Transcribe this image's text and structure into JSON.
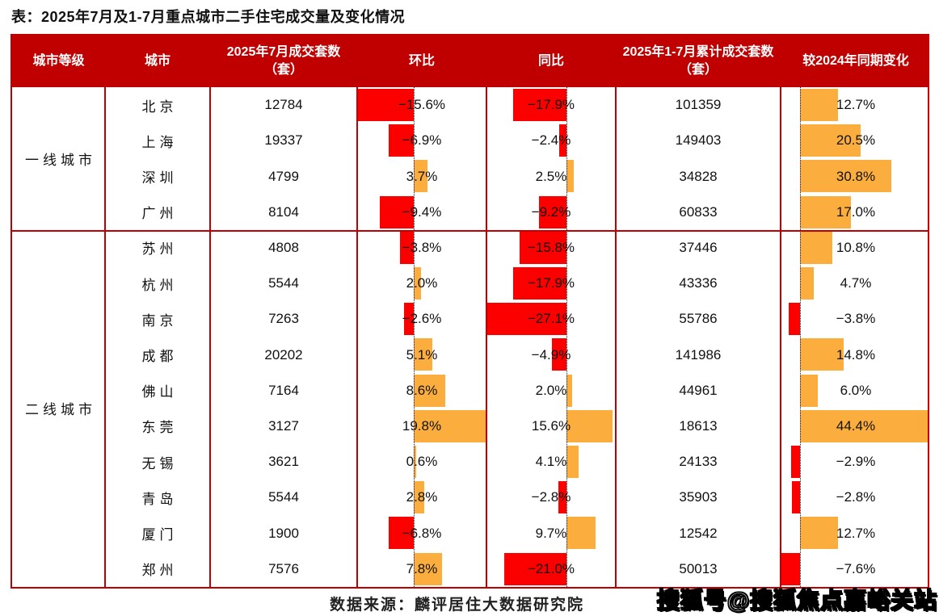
{
  "title": "表：2025年7月及1-7月重点城市二手住宅成交量及变化情况",
  "footer": {
    "source": "数据来源：麟评居住大数据研究院"
  },
  "watermark": "搜狐号@搜狐焦点嘉峪关站",
  "colors": {
    "header_bg": "#C00000",
    "border": "#C00000",
    "negative_bar": "#FC0000",
    "positive_bar": "#FBAE3D",
    "baseline": "#1B1B1B",
    "header_text": "#FFFFFF",
    "cell_text": "#111111"
  },
  "chart_data": {
    "type": "table",
    "title": "表：2025年7月及1-7月重点城市二手住宅成交量及变化情况",
    "columns": [
      "城市等级",
      "城市",
      "2025年7月成交套数（套）",
      "环比",
      "同比",
      "2025年1-7月累计成交套数（套）",
      "较2024年同期变化"
    ],
    "bar_semantics": "环比 / 同比 / 较2024年同期变化 列内嵌条形图：负值为红色向左，正值为橙色向右，虚线为零基线",
    "groups": [
      {
        "tier": "一线城市",
        "rows": [
          {
            "city": "北京",
            "jul_units": 12784,
            "mom_pct": -15.6,
            "yoy_pct": -17.9,
            "cum_units": 101359,
            "vs_2024_pct": 12.7
          },
          {
            "city": "上海",
            "jul_units": 19337,
            "mom_pct": -6.9,
            "yoy_pct": -2.4,
            "cum_units": 149403,
            "vs_2024_pct": 20.5
          },
          {
            "city": "深圳",
            "jul_units": 4799,
            "mom_pct": 3.7,
            "yoy_pct": 2.5,
            "cum_units": 34828,
            "vs_2024_pct": 30.8
          },
          {
            "city": "广州",
            "jul_units": 8104,
            "mom_pct": -9.4,
            "yoy_pct": -9.2,
            "cum_units": 60833,
            "vs_2024_pct": 17.0
          }
        ]
      },
      {
        "tier": "二线城市",
        "rows": [
          {
            "city": "苏州",
            "jul_units": 4808,
            "mom_pct": -3.8,
            "yoy_pct": -15.8,
            "cum_units": 37446,
            "vs_2024_pct": 10.8
          },
          {
            "city": "杭州",
            "jul_units": 5544,
            "mom_pct": 2.0,
            "yoy_pct": -17.9,
            "cum_units": 43336,
            "vs_2024_pct": 4.7
          },
          {
            "city": "南京",
            "jul_units": 7263,
            "mom_pct": -2.6,
            "yoy_pct": -27.1,
            "cum_units": 55786,
            "vs_2024_pct": -3.8
          },
          {
            "city": "成都",
            "jul_units": 20202,
            "mom_pct": 5.1,
            "yoy_pct": -4.9,
            "cum_units": 141986,
            "vs_2024_pct": 14.8
          },
          {
            "city": "佛山",
            "jul_units": 7164,
            "mom_pct": 8.6,
            "yoy_pct": 2.0,
            "cum_units": 44961,
            "vs_2024_pct": 6.0
          },
          {
            "city": "东莞",
            "jul_units": 3127,
            "mom_pct": 19.8,
            "yoy_pct": 15.6,
            "cum_units": 18613,
            "vs_2024_pct": 44.4
          },
          {
            "city": "无锡",
            "jul_units": 3621,
            "mom_pct": 0.6,
            "yoy_pct": 4.1,
            "cum_units": 24133,
            "vs_2024_pct": -2.9
          },
          {
            "city": "青岛",
            "jul_units": 5544,
            "mom_pct": 2.8,
            "yoy_pct": -2.8,
            "cum_units": 35903,
            "vs_2024_pct": -2.8
          },
          {
            "city": "厦门",
            "jul_units": 1900,
            "mom_pct": -6.8,
            "yoy_pct": 9.7,
            "cum_units": 12542,
            "vs_2024_pct": 12.7
          },
          {
            "city": "郑州",
            "jul_units": 7576,
            "mom_pct": 7.8,
            "yoy_pct": -21.0,
            "cum_units": 50013,
            "vs_2024_pct": -7.6
          }
        ]
      }
    ]
  }
}
